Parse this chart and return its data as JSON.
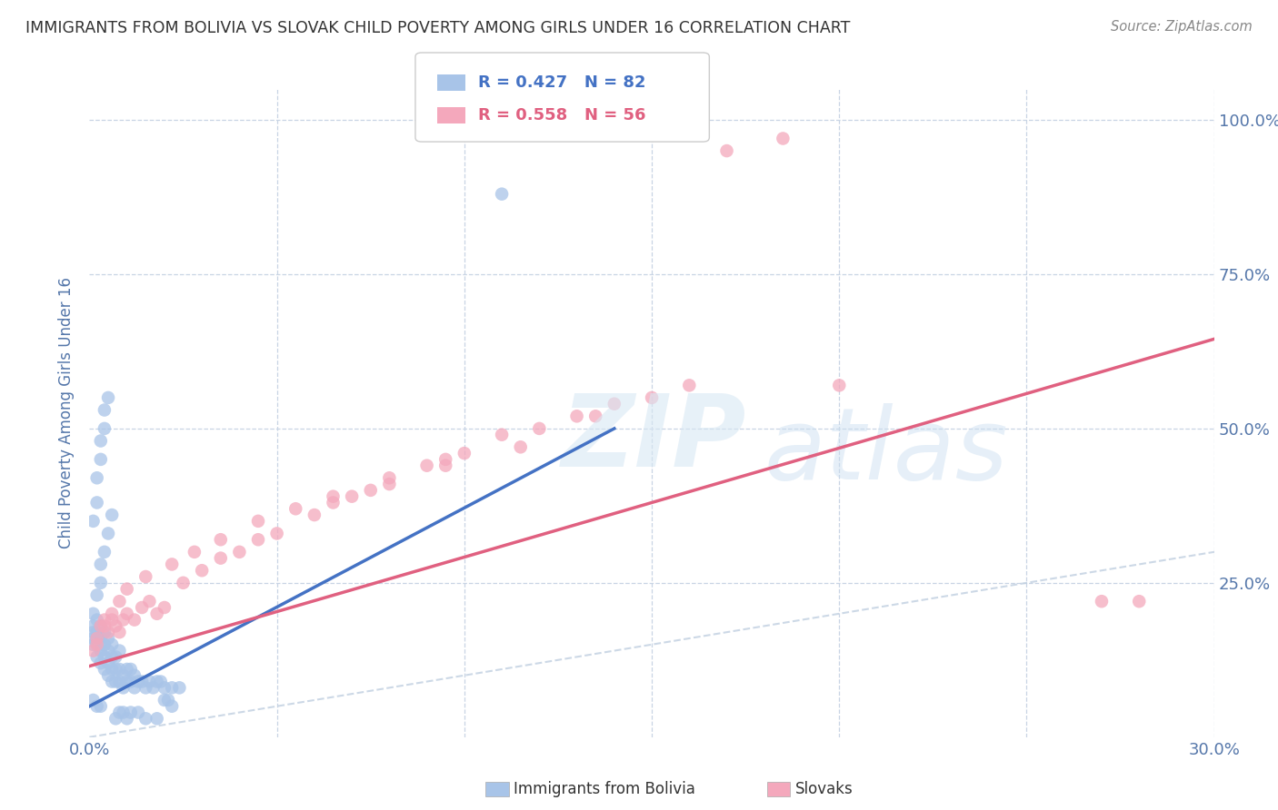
{
  "title": "IMMIGRANTS FROM BOLIVIA VS SLOVAK CHILD POVERTY AMONG GIRLS UNDER 16 CORRELATION CHART",
  "source": "Source: ZipAtlas.com",
  "ylabel": "Child Poverty Among Girls Under 16",
  "xlim": [
    0.0,
    0.3
  ],
  "ylim": [
    0.0,
    1.05
  ],
  "bolivia_color": "#a8c4e8",
  "slovak_color": "#f4a8bc",
  "bolivia_line_color": "#4472c4",
  "slovak_line_color": "#e06080",
  "dashed_line_color": "#c0cfe0",
  "legend_R1": "0.427",
  "legend_N1": "82",
  "legend_R2": "0.558",
  "legend_N2": "56",
  "background_color": "#ffffff",
  "grid_color": "#c8d4e4",
  "title_color": "#333333",
  "tick_label_color": "#5577aa",
  "bolivia_scatter_x": [
    0.001,
    0.001,
    0.001,
    0.001,
    0.002,
    0.002,
    0.002,
    0.002,
    0.002,
    0.003,
    0.003,
    0.003,
    0.003,
    0.003,
    0.004,
    0.004,
    0.004,
    0.004,
    0.005,
    0.005,
    0.005,
    0.005,
    0.006,
    0.006,
    0.006,
    0.006,
    0.007,
    0.007,
    0.007,
    0.008,
    0.008,
    0.008,
    0.009,
    0.009,
    0.01,
    0.01,
    0.011,
    0.011,
    0.012,
    0.012,
    0.013,
    0.014,
    0.015,
    0.016,
    0.017,
    0.018,
    0.019,
    0.02,
    0.022,
    0.024,
    0.001,
    0.002,
    0.002,
    0.003,
    0.003,
    0.004,
    0.004,
    0.005,
    0.001,
    0.002,
    0.003,
    0.003,
    0.004,
    0.005,
    0.006,
    0.001,
    0.002,
    0.003,
    0.02,
    0.021,
    0.022,
    0.007,
    0.008,
    0.009,
    0.01,
    0.011,
    0.013,
    0.015,
    0.018,
    0.11
  ],
  "bolivia_scatter_y": [
    0.15,
    0.16,
    0.17,
    0.18,
    0.13,
    0.15,
    0.16,
    0.17,
    0.19,
    0.12,
    0.14,
    0.15,
    0.16,
    0.18,
    0.11,
    0.13,
    0.15,
    0.17,
    0.1,
    0.12,
    0.14,
    0.16,
    0.09,
    0.11,
    0.13,
    0.15,
    0.09,
    0.11,
    0.13,
    0.09,
    0.11,
    0.14,
    0.08,
    0.1,
    0.09,
    0.11,
    0.09,
    0.11,
    0.08,
    0.1,
    0.09,
    0.09,
    0.08,
    0.09,
    0.08,
    0.09,
    0.09,
    0.08,
    0.08,
    0.08,
    0.35,
    0.38,
    0.42,
    0.45,
    0.48,
    0.5,
    0.53,
    0.55,
    0.2,
    0.23,
    0.25,
    0.28,
    0.3,
    0.33,
    0.36,
    0.06,
    0.05,
    0.05,
    0.06,
    0.06,
    0.05,
    0.03,
    0.04,
    0.04,
    0.03,
    0.04,
    0.04,
    0.03,
    0.03,
    0.88
  ],
  "slovak_scatter_x": [
    0.001,
    0.002,
    0.003,
    0.004,
    0.005,
    0.006,
    0.007,
    0.008,
    0.009,
    0.01,
    0.012,
    0.014,
    0.016,
    0.018,
    0.02,
    0.025,
    0.03,
    0.035,
    0.04,
    0.045,
    0.05,
    0.06,
    0.065,
    0.07,
    0.075,
    0.08,
    0.09,
    0.095,
    0.1,
    0.11,
    0.12,
    0.13,
    0.14,
    0.15,
    0.16,
    0.17,
    0.185,
    0.002,
    0.004,
    0.006,
    0.008,
    0.01,
    0.015,
    0.022,
    0.028,
    0.035,
    0.045,
    0.055,
    0.065,
    0.08,
    0.095,
    0.115,
    0.135,
    0.27,
    0.28,
    0.2
  ],
  "slovak_scatter_y": [
    0.14,
    0.16,
    0.18,
    0.19,
    0.17,
    0.19,
    0.18,
    0.17,
    0.19,
    0.2,
    0.19,
    0.21,
    0.22,
    0.2,
    0.21,
    0.25,
    0.27,
    0.29,
    0.3,
    0.32,
    0.33,
    0.36,
    0.38,
    0.39,
    0.4,
    0.41,
    0.44,
    0.45,
    0.46,
    0.49,
    0.5,
    0.52,
    0.54,
    0.55,
    0.57,
    0.95,
    0.97,
    0.15,
    0.18,
    0.2,
    0.22,
    0.24,
    0.26,
    0.28,
    0.3,
    0.32,
    0.35,
    0.37,
    0.39,
    0.42,
    0.44,
    0.47,
    0.52,
    0.22,
    0.22,
    0.57
  ],
  "bolivia_line_x": [
    0.0,
    0.14
  ],
  "bolivia_line_y": [
    0.05,
    0.5
  ],
  "slovak_line_x": [
    0.0,
    0.3
  ],
  "slovak_line_y": [
    0.115,
    0.645
  ],
  "dashed_line_x": [
    0.0,
    1.0
  ],
  "dashed_line_y": [
    0.0,
    1.0
  ]
}
